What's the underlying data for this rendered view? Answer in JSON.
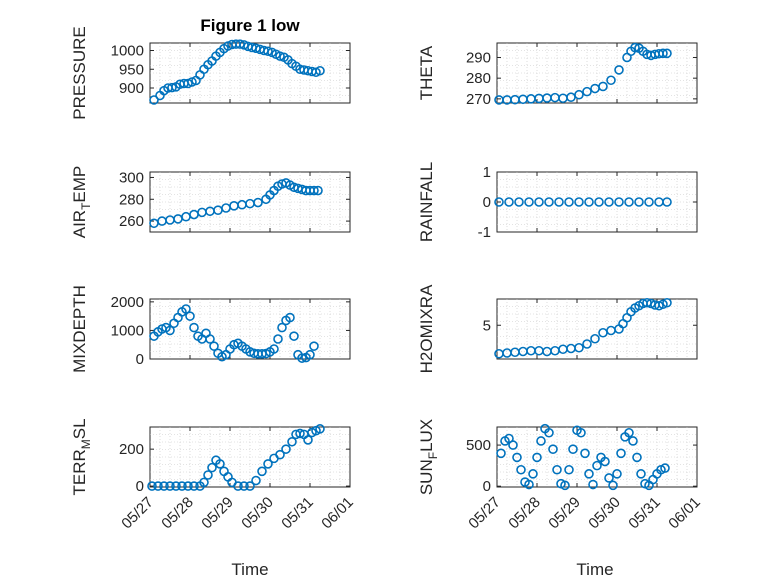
{
  "figure": {
    "title": "Figure 1 low",
    "marker_color": "#0072BD",
    "x_tick_labels": [
      "05/27",
      "05/28",
      "05/29",
      "05/30",
      "05/31",
      "06/01"
    ],
    "x_label": "Time"
  },
  "chart_data": [
    {
      "type": "scatter",
      "ylabel": "PRESSURE",
      "ylabel_parts": [
        "PRESSURE"
      ],
      "xlim": [
        0,
        5
      ],
      "ylim": [
        860,
        1020
      ],
      "yticks": [
        900,
        950,
        1000
      ],
      "grid": true,
      "x": [
        0.1,
        0.25,
        0.35,
        0.45,
        0.55,
        0.65,
        0.75,
        0.85,
        0.95,
        1.05,
        1.15,
        1.25,
        1.35,
        1.45,
        1.55,
        1.65,
        1.75,
        1.85,
        1.95,
        2.05,
        2.15,
        2.25,
        2.35,
        2.45,
        2.55,
        2.65,
        2.75,
        2.85,
        2.95,
        3.05,
        3.15,
        3.25,
        3.35,
        3.45,
        3.55,
        3.65,
        3.75,
        3.85,
        3.95,
        4.05,
        4.15,
        4.25
      ],
      "y": [
        868,
        880,
        893,
        900,
        901,
        903,
        910,
        912,
        912,
        916,
        920,
        935,
        950,
        962,
        972,
        985,
        995,
        1005,
        1012,
        1016,
        1017,
        1017,
        1015,
        1011,
        1008,
        1006,
        1003,
        1000,
        998,
        995,
        990,
        985,
        982,
        975,
        965,
        958,
        950,
        948,
        946,
        944,
        942,
        946
      ]
    },
    {
      "type": "scatter",
      "ylabel": "THETA",
      "ylabel_parts": [
        "THETA"
      ],
      "xlim": [
        0,
        5
      ],
      "ylim": [
        268,
        297
      ],
      "yticks": [
        270,
        280,
        290
      ],
      "grid": true,
      "x": [
        0.05,
        0.25,
        0.45,
        0.65,
        0.85,
        1.05,
        1.25,
        1.45,
        1.65,
        1.85,
        2.05,
        2.25,
        2.45,
        2.65,
        2.85,
        3.05,
        3.25,
        3.35,
        3.45,
        3.55,
        3.65,
        3.75,
        3.85,
        3.95,
        4.05,
        4.15,
        4.25
      ],
      "y": [
        269.5,
        269.5,
        269.6,
        269.8,
        270.0,
        270.2,
        270.4,
        270.6,
        270.3,
        270.8,
        272.0,
        273.5,
        275.0,
        276.0,
        279.0,
        284.0,
        290.0,
        293.0,
        294.8,
        294.5,
        293.0,
        291.5,
        291.0,
        291.5,
        291.8,
        292.0,
        292.0
      ]
    },
    {
      "type": "scatter",
      "ylabel": "AIR_TEMP",
      "ylabel_parts": [
        "AIR",
        "T",
        "EMP"
      ],
      "xlim": [
        0,
        5
      ],
      "ylim": [
        250,
        305
      ],
      "yticks": [
        260,
        280,
        300
      ],
      "grid": true,
      "x": [
        0.1,
        0.3,
        0.5,
        0.7,
        0.9,
        1.1,
        1.3,
        1.5,
        1.7,
        1.9,
        2.1,
        2.3,
        2.5,
        2.7,
        2.9,
        3.0,
        3.1,
        3.2,
        3.3,
        3.4,
        3.5,
        3.6,
        3.7,
        3.8,
        3.9,
        4.0,
        4.1,
        4.2
      ],
      "y": [
        258,
        260,
        261,
        262,
        264,
        266,
        268,
        269,
        270,
        272,
        274,
        275,
        276,
        277,
        280,
        284,
        288,
        292,
        294,
        295,
        293,
        291,
        290,
        289,
        288,
        288,
        288,
        288
      ]
    },
    {
      "type": "scatter",
      "ylabel": "RAINFALL",
      "ylabel_parts": [
        "RAINFALL"
      ],
      "xlim": [
        0,
        5
      ],
      "ylim": [
        -1,
        1
      ],
      "yticks": [
        -1,
        0,
        1
      ],
      "grid": true,
      "x": [
        0.05,
        0.3,
        0.55,
        0.8,
        1.05,
        1.3,
        1.55,
        1.8,
        2.05,
        2.3,
        2.55,
        2.8,
        3.05,
        3.3,
        3.55,
        3.8,
        4.05,
        4.25
      ],
      "y": [
        0,
        0,
        0,
        0,
        0,
        0,
        0,
        0,
        0,
        0,
        0,
        0,
        0,
        0,
        0,
        0,
        0,
        0
      ]
    },
    {
      "type": "scatter",
      "ylabel": "MIXDEPTH",
      "ylabel_parts": [
        "MIXDEPTH"
      ],
      "xlim": [
        0,
        5
      ],
      "ylim": [
        0,
        2100
      ],
      "yticks": [
        0,
        1000,
        2000
      ],
      "grid": true,
      "x": [
        0.1,
        0.2,
        0.3,
        0.4,
        0.5,
        0.6,
        0.7,
        0.8,
        0.9,
        1.0,
        1.1,
        1.2,
        1.3,
        1.4,
        1.5,
        1.6,
        1.7,
        1.8,
        1.9,
        2.0,
        2.1,
        2.2,
        2.3,
        2.4,
        2.5,
        2.6,
        2.7,
        2.8,
        2.9,
        3.0,
        3.1,
        3.2,
        3.3,
        3.4,
        3.5,
        3.6,
        3.7,
        3.8,
        3.9,
        4.0,
        4.1
      ],
      "y": [
        800,
        950,
        1050,
        1100,
        1000,
        1250,
        1450,
        1650,
        1750,
        1500,
        1100,
        800,
        700,
        900,
        700,
        450,
        200,
        80,
        150,
        350,
        500,
        550,
        450,
        350,
        250,
        200,
        180,
        180,
        190,
        250,
        350,
        700,
        1100,
        1350,
        1450,
        800,
        150,
        30,
        50,
        150,
        450
      ]
    },
    {
      "type": "scatter",
      "ylabel": "H2OMIXRA",
      "ylabel_parts": [
        "H2OMIXRA"
      ],
      "xlim": [
        0,
        5
      ],
      "ylim": [
        0.5,
        8.5
      ],
      "yticks": [
        5
      ],
      "grid": true,
      "x": [
        0.05,
        0.25,
        0.45,
        0.65,
        0.85,
        1.05,
        1.25,
        1.45,
        1.65,
        1.85,
        2.05,
        2.25,
        2.45,
        2.65,
        2.85,
        3.05,
        3.15,
        3.25,
        3.35,
        3.45,
        3.55,
        3.65,
        3.75,
        3.85,
        3.95,
        4.05,
        4.15,
        4.25
      ],
      "y": [
        1.2,
        1.3,
        1.4,
        1.5,
        1.6,
        1.6,
        1.5,
        1.6,
        1.8,
        1.9,
        2.0,
        2.5,
        3.2,
        4.0,
        4.3,
        4.5,
        5.2,
        6.0,
        6.8,
        7.3,
        7.6,
        7.9,
        8.0,
        7.9,
        7.7,
        7.6,
        7.8,
        8.0
      ]
    },
    {
      "type": "scatter",
      "ylabel": "TERR_MSL",
      "ylabel_parts": [
        "TERR",
        "M",
        "SL"
      ],
      "xlim": [
        0,
        5
      ],
      "ylim": [
        -5,
        320
      ],
      "yticks": [
        0,
        200
      ],
      "grid": true,
      "x": [
        0.05,
        0.2,
        0.35,
        0.5,
        0.65,
        0.8,
        0.95,
        1.1,
        1.25,
        1.35,
        1.45,
        1.55,
        1.65,
        1.75,
        1.85,
        1.95,
        2.05,
        2.2,
        2.35,
        2.5,
        2.65,
        2.8,
        2.95,
        3.1,
        3.25,
        3.4,
        3.55,
        3.65,
        3.75,
        3.85,
        3.95,
        4.05,
        4.15,
        4.25
      ],
      "y": [
        0,
        0,
        0,
        0,
        0,
        0,
        0,
        0,
        0,
        20,
        60,
        100,
        140,
        120,
        80,
        50,
        20,
        0,
        0,
        0,
        30,
        80,
        120,
        150,
        170,
        200,
        240,
        280,
        285,
        280,
        250,
        290,
        300,
        310
      ]
    },
    {
      "type": "scatter",
      "ylabel": "SUN_FLUX",
      "ylabel_parts": [
        "SUN",
        "F",
        "LUX"
      ],
      "xlim": [
        0,
        5
      ],
      "ylim": [
        -10,
        720
      ],
      "yticks": [
        0,
        500
      ],
      "grid": true,
      "x": [
        0.1,
        0.2,
        0.3,
        0.4,
        0.5,
        0.6,
        0.7,
        0.8,
        0.9,
        1.0,
        1.1,
        1.2,
        1.3,
        1.4,
        1.5,
        1.6,
        1.7,
        1.8,
        1.9,
        2.0,
        2.1,
        2.2,
        2.3,
        2.4,
        2.5,
        2.6,
        2.7,
        2.8,
        2.9,
        3.0,
        3.1,
        3.2,
        3.3,
        3.4,
        3.5,
        3.6,
        3.7,
        3.8,
        3.9,
        4.0,
        4.1,
        4.2
      ],
      "y": [
        400,
        550,
        580,
        500,
        350,
        200,
        50,
        20,
        150,
        350,
        550,
        700,
        650,
        450,
        200,
        30,
        10,
        200,
        450,
        680,
        650,
        400,
        150,
        20,
        250,
        350,
        300,
        100,
        10,
        150,
        400,
        600,
        650,
        550,
        350,
        150,
        30,
        10,
        80,
        150,
        200,
        220
      ]
    }
  ]
}
